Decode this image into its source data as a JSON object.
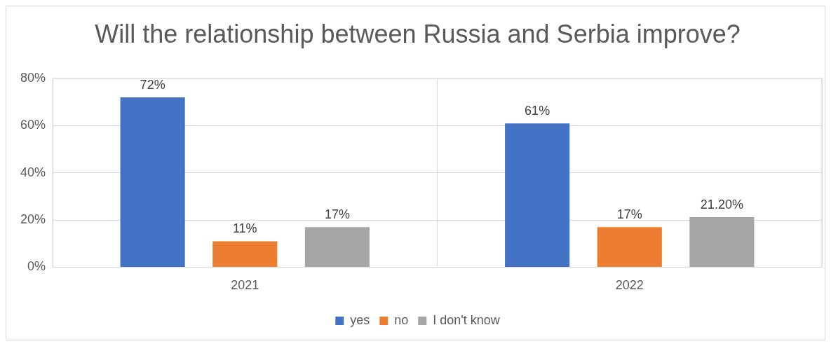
{
  "chart_data": {
    "type": "bar",
    "title": "Will the relationship between Russia and Serbia improve?",
    "categories": [
      "2021",
      "2022"
    ],
    "series": [
      {
        "name": "yes",
        "color": "#4472c4",
        "values": [
          72,
          61
        ],
        "value_labels": [
          "72%",
          "61%"
        ]
      },
      {
        "name": "no",
        "color": "#ed7d31",
        "values": [
          11,
          17
        ],
        "value_labels": [
          "11%",
          "17%"
        ]
      },
      {
        "name": "I don't know",
        "color": "#a5a5a5",
        "values": [
          17,
          21.2
        ],
        "value_labels": [
          "17%",
          "21.20%"
        ]
      }
    ],
    "ylim": [
      0,
      80
    ],
    "yticks": [
      {
        "value": 0,
        "label": "0%"
      },
      {
        "value": 20,
        "label": "20%"
      },
      {
        "value": 40,
        "label": "40%"
      },
      {
        "value": 60,
        "label": "60%"
      },
      {
        "value": 80,
        "label": "80%"
      }
    ],
    "grid": "y",
    "legend": "bottom"
  }
}
